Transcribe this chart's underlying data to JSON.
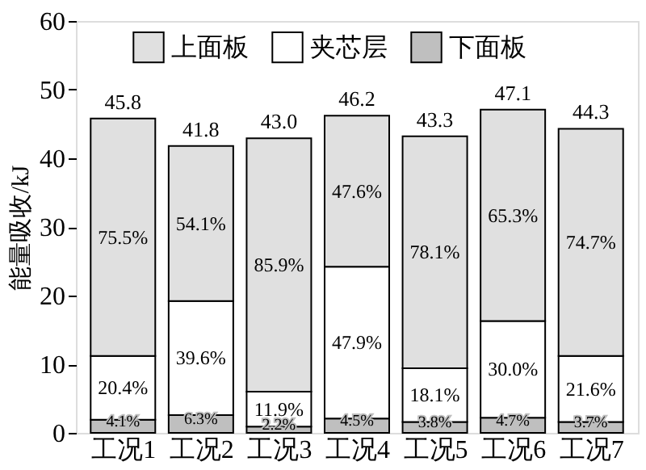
{
  "chart_data": {
    "type": "bar",
    "stacked": true,
    "ylabel": "能量吸收/kJ",
    "categories": [
      "工况1",
      "工况2",
      "工况3",
      "工况4",
      "工况5",
      "工况6",
      "工况7"
    ],
    "series": [
      {
        "name": "下面板",
        "color": "#bfbfbf",
        "values": [
          1.9,
          2.6,
          0.9,
          2.1,
          1.6,
          2.2,
          1.6
        ]
      },
      {
        "name": "夹芯层",
        "color": "#ffffff",
        "values": [
          9.3,
          16.6,
          5.1,
          22.1,
          7.8,
          14.1,
          9.6
        ]
      },
      {
        "name": "上面板",
        "color": "#e0e0e0",
        "values": [
          34.6,
          22.6,
          36.9,
          22.0,
          33.8,
          30.8,
          33.1
        ]
      }
    ],
    "annotations": [
      "4.1%",
      "6.3%",
      "2.2%",
      "4.5%",
      "3.8%",
      "4.7%",
      "3.7%",
      "20.4%",
      "39.6%",
      "11.9%",
      "47.9%",
      "18.1%",
      "30.0%",
      "21.6%",
      "75.5%",
      "54.1%",
      "85.9%",
      "47.6%",
      "78.1%",
      "65.3%",
      "74.7%"
    ],
    "totals": [
      "45.8",
      "41.8",
      "43.0",
      "46.2",
      "43.3",
      "47.1",
      "44.3"
    ],
    "ylim": [
      0,
      60
    ],
    "yticks": [
      0,
      10,
      20,
      30,
      40,
      50,
      60
    ],
    "grid": false,
    "legend": "top"
  }
}
